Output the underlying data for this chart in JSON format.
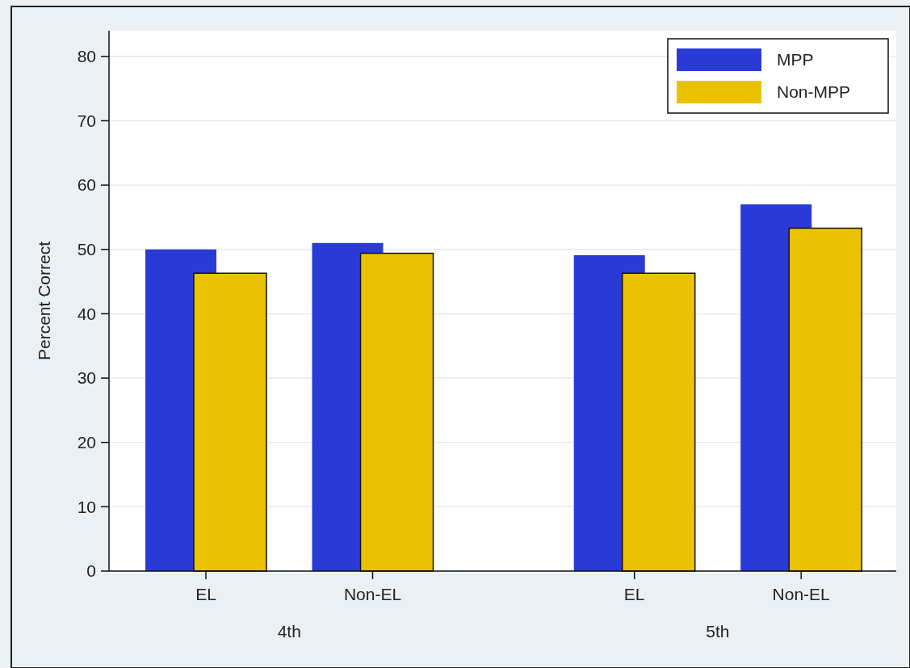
{
  "chart_data": {
    "type": "bar",
    "ylabel": "Percent Correct",
    "categories": [
      "EL",
      "Non-EL",
      "EL",
      "Non-EL"
    ],
    "annotations": [
      "4th",
      "5th"
    ],
    "series": [
      {
        "name": "MPP",
        "color": "#2a3ad6",
        "values": [
          50,
          51,
          49.1,
          57
        ]
      },
      {
        "name": "Non-MPP",
        "color": "#eac200",
        "values": [
          46.3,
          49.4,
          46.3,
          53.3
        ]
      }
    ],
    "ylim": [
      0,
      84
    ],
    "yticks": [
      0,
      10,
      20,
      30,
      40,
      50,
      60,
      70,
      80
    ],
    "grid": "y",
    "legend": "top right"
  }
}
